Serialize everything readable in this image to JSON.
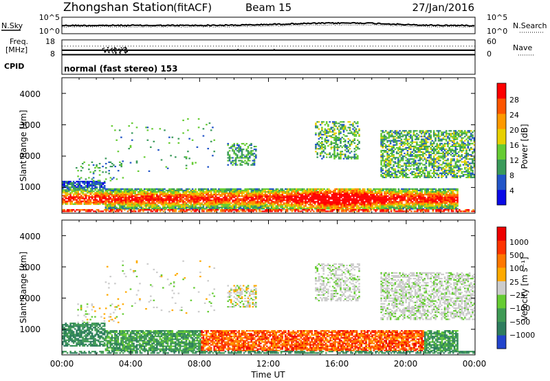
{
  "header": {
    "station": "Zhongshan Station",
    "mode": "(fitACF)",
    "beam": "Beam 15",
    "date": "27/Jan/2016"
  },
  "top_panel": {
    "left_label": "N.Sky",
    "right_label": "N.Search",
    "left_ticks": [
      "10^5",
      "10^0"
    ],
    "right_ticks": [
      "10^5",
      "10^0"
    ]
  },
  "freq_panel": {
    "left_label_1": "Freq.",
    "left_label_2": "[MHz]",
    "right_label": "Nave",
    "left_ticks": [
      "18",
      "8"
    ],
    "right_ticks": [
      "60",
      "0"
    ]
  },
  "cpid": {
    "label": "CPID",
    "value": "normal (fast stereo) 153"
  },
  "chart_data": [
    {
      "type": "heatmap",
      "name": "power",
      "ylabel": "Slant Range [km]",
      "y_ticks": [
        "4000",
        "3000",
        "2000",
        "1000"
      ],
      "ylim": [
        180,
        4500
      ],
      "colorbar_label": "Power [dB]",
      "colorbar_ticks": [
        "28",
        "24",
        "20",
        "16",
        "12",
        "8",
        "4"
      ],
      "colors": [
        "#0a0ae6",
        "#2255c8",
        "#3a9a5a",
        "#66cc33",
        "#e8d000",
        "#ff9900",
        "#ff5500",
        "#ff0000"
      ]
    },
    {
      "type": "heatmap",
      "name": "velocity",
      "ylabel": "Slant Range [km]",
      "y_ticks": [
        "4000",
        "3000",
        "2000",
        "1000"
      ],
      "ylim": [
        180,
        4500
      ],
      "colorbar_label": "Velocity [m s⁻¹]",
      "colorbar_ticks": [
        "1000",
        "500",
        "100",
        "25",
        "−25",
        "−100",
        "−500",
        "−1000"
      ],
      "colors": [
        "#2244cc",
        "#2e7d5e",
        "#3f9a55",
        "#66cc33",
        "#cccccc",
        "#ffaa00",
        "#ff7700",
        "#ff3300",
        "#ee0000"
      ]
    }
  ],
  "x_axis": {
    "label": "Time UT",
    "ticks": [
      "00:00",
      "04:00",
      "08:00",
      "12:00",
      "16:00",
      "20:00",
      "00:00"
    ]
  }
}
